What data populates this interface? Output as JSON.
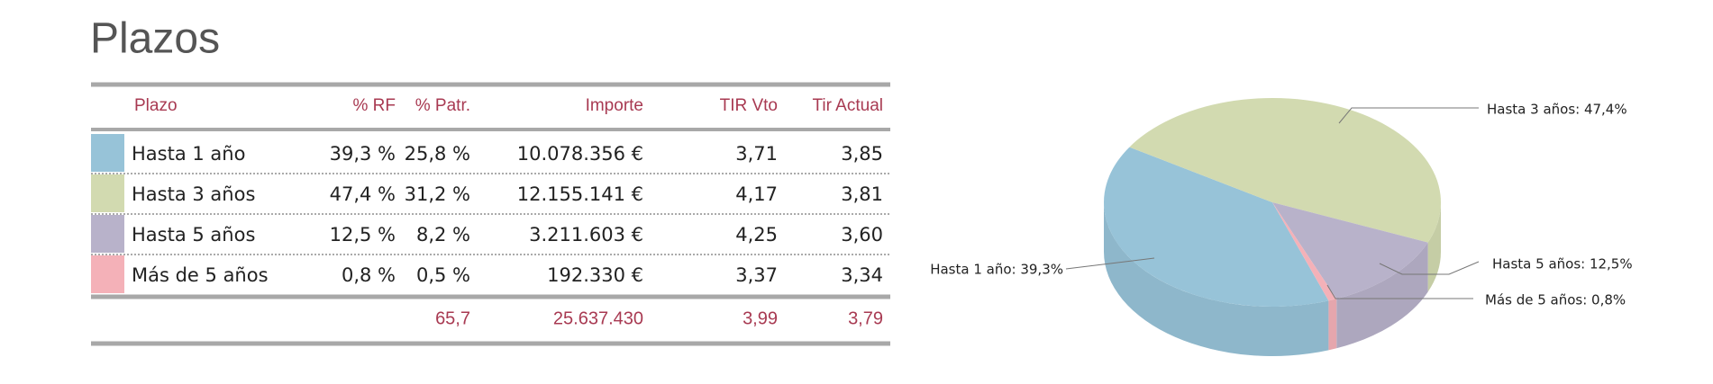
{
  "title": "Plazos",
  "table": {
    "headers": [
      "Plazo",
      "% RF",
      "% Patr.",
      "Importe",
      "TIR Vto",
      "Tir Actual"
    ],
    "rows": [
      [
        "Hasta 1 año",
        "39,3 %",
        "25,8 %",
        "10.078.356 €",
        "3,71",
        "3,85"
      ],
      [
        "Hasta 3 años",
        "47,4 %",
        "31,2 %",
        "12.155.141 €",
        "4,17",
        "3,81"
      ],
      [
        "Hasta 5 años",
        "12,5 %",
        "8,2 %",
        "3.211.603 €",
        "4,25",
        "3,60"
      ],
      [
        "Más de 5 años",
        "0,8 %",
        "0,5 %",
        "192.330 €",
        "3,37",
        "3,34"
      ]
    ],
    "colors": [
      "#97c3d8",
      "#d2dab0",
      "#b8b2ca",
      "#f4b1b8"
    ],
    "totals": [
      "65,7",
      "25.637.430",
      "3,99",
      "3,79"
    ]
  },
  "chart_data": {
    "type": "pie",
    "values": [
      39.3,
      47.4,
      12.5,
      0.8
    ],
    "value_labels": [
      "Hasta 1 año: 39,3%",
      "Hasta 3 años: 47,4%",
      "Hasta 5 años: 12,5%",
      "Más de 5 años: 0,8%"
    ],
    "colors": [
      "#97c3d8",
      "#d2dab0",
      "#b8b2ca",
      "#f4b1b8"
    ],
    "three_d": true
  }
}
